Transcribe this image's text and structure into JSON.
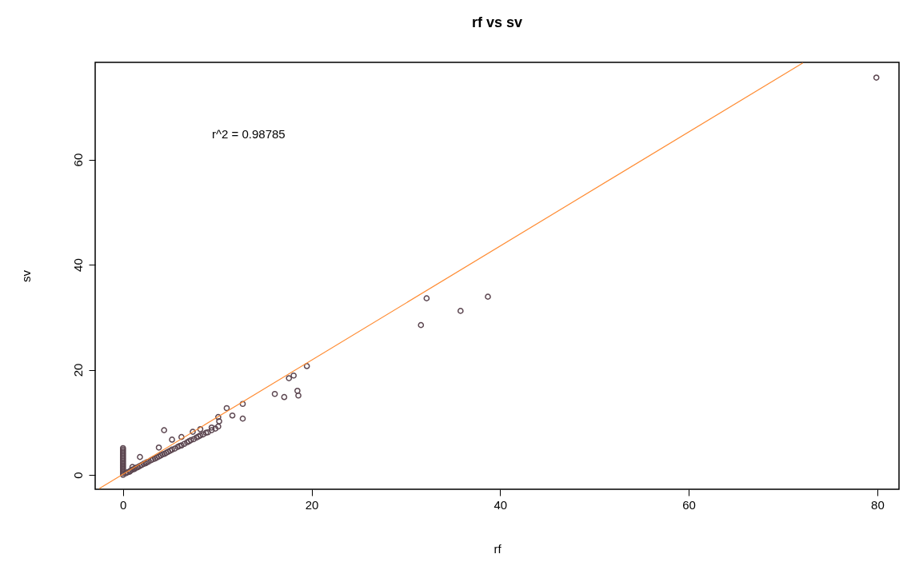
{
  "chart_data": {
    "type": "scatter",
    "title": "rf vs sv",
    "xlabel": "rf",
    "ylabel": "sv",
    "xlim": [
      -2.95,
      82.3
    ],
    "ylim": [
      -2.74,
      78.5
    ],
    "xticks": [
      0,
      20,
      40,
      60,
      80
    ],
    "yticks": [
      0,
      20,
      40,
      60
    ],
    "grid": false,
    "marker": "circle",
    "annotations": [
      "r^2 = 0.98785"
    ],
    "series": [
      {
        "color": "#5c4650",
        "x": [
          0,
          0,
          0,
          0,
          0,
          0,
          0,
          0,
          0,
          0,
          0,
          0,
          0,
          0,
          0,
          0,
          0,
          0,
          0.3,
          0.5,
          0.7,
          0.8,
          1.0,
          1.2,
          1.3,
          1.5,
          1.6,
          1.8,
          2.0,
          2.2,
          2.4,
          2.5,
          2.7,
          3.0,
          3.2,
          3.4,
          3.6,
          3.8,
          4.0,
          4.2,
          4.4,
          4.6,
          4.8,
          5.0,
          5.2,
          5.5,
          5.8,
          6.0,
          6.2,
          6.5,
          6.8,
          7.0,
          7.2,
          7.5,
          7.8,
          8.0,
          8.2,
          8.5,
          8.8,
          9.0,
          9.4,
          9.8,
          10.1,
          10.2,
          1.0,
          1.8,
          3.8,
          5.2,
          6.2,
          7.4,
          8.2,
          9.4,
          4.36,
          11.0,
          11.6,
          12.7,
          12.7,
          10.1,
          16.1,
          17.1,
          17.6,
          18.1,
          18.5,
          18.6,
          19.5,
          31.6,
          32.2,
          35.8,
          38.7,
          79.9
        ],
        "values": [
          0,
          0.3,
          0.6,
          0.9,
          1.2,
          1.5,
          1.8,
          2.1,
          2.4,
          2.7,
          3.0,
          3.3,
          3.6,
          3.9,
          4.2,
          4.5,
          4.8,
          5.1,
          0.3,
          0.5,
          0.6,
          0.8,
          1.0,
          1.1,
          1.3,
          1.4,
          1.5,
          1.7,
          1.9,
          2.1,
          2.2,
          2.4,
          2.5,
          2.8,
          3.0,
          3.1,
          3.3,
          3.5,
          3.7,
          3.9,
          4.0,
          4.2,
          4.4,
          4.6,
          4.8,
          5.0,
          5.3,
          5.5,
          5.6,
          5.9,
          6.2,
          6.4,
          6.6,
          6.8,
          7.1,
          7.3,
          7.5,
          7.7,
          8.0,
          8.1,
          8.5,
          8.8,
          9.2,
          10.2,
          1.5,
          3.4,
          5.2,
          6.7,
          7.2,
          8.2,
          8.7,
          9.0,
          8.5,
          12.7,
          11.3,
          13.5,
          10.7,
          11.0,
          15.4,
          14.8,
          18.4,
          18.9,
          16.0,
          15.1,
          20.7,
          28.5,
          33.6,
          31.2,
          33.9,
          75.6
        ]
      },
      {
        "type": "line",
        "color": "#ff8c33",
        "marker": "none",
        "x": [
          -2.5,
          72.1
        ],
        "values": [
          -2.6,
          78.4
        ]
      }
    ]
  }
}
